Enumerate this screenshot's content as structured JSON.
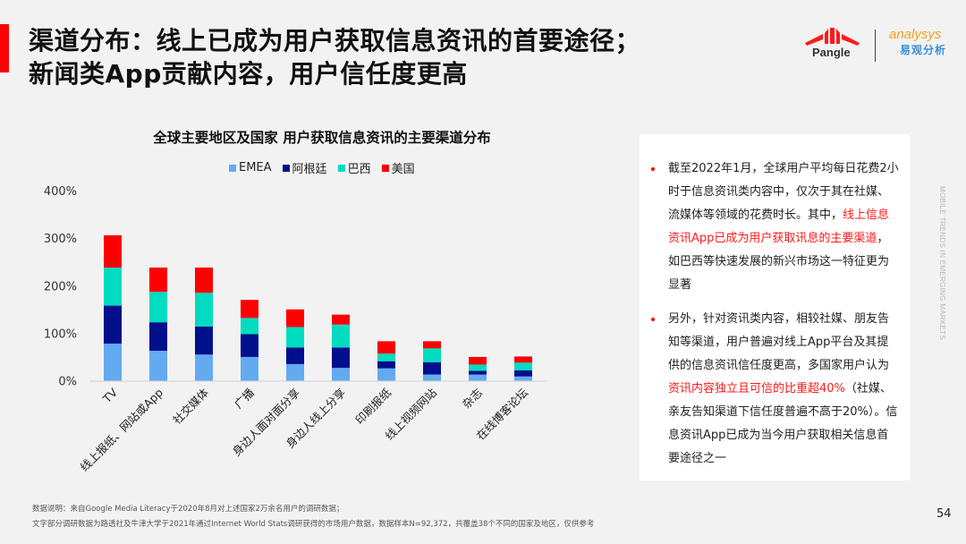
{
  "header": {
    "title_line1": "渠道分布：线上已成为用户获取信息资讯的首要途径；",
    "title_line2": "新闻类App贡献内容，用户信任度更高",
    "logos": {
      "pangle": "Pangle",
      "analysys_en": "analysys",
      "analysys_cn": "易观分析"
    }
  },
  "chart_data": {
    "type": "bar",
    "stacked": true,
    "title": "全球主要地区及国家  用户获取信息资讯的主要渠道分布",
    "xlabel": "",
    "ylabel": "",
    "ylim": [
      0,
      400
    ],
    "yticks": [
      "0%",
      "100%",
      "200%",
      "300%",
      "400%"
    ],
    "ytick_values": [
      0,
      100,
      200,
      300,
      400
    ],
    "grid": false,
    "legend_position": "top-center",
    "categories": [
      "TV",
      "线上报纸、网站或App",
      "社交媒体",
      "广播",
      "身边人面对面分享",
      "身边人线上分享",
      "印刷报纸",
      "线上视频网站",
      "杂志",
      "在线博客论坛"
    ],
    "series": [
      {
        "name": "EMEA",
        "color": "#64aaf0",
        "values": [
          78,
          63,
          55,
          50,
          35,
          27,
          26,
          13,
          13,
          9
        ]
      },
      {
        "name": "阿根廷",
        "color": "#000f8c",
        "values": [
          80,
          60,
          59,
          48,
          35,
          43,
          15,
          26,
          8,
          13
        ]
      },
      {
        "name": "巴西",
        "color": "#00dcc0",
        "values": [
          80,
          64,
          71,
          34,
          43,
          48,
          16,
          29,
          13,
          16
        ]
      },
      {
        "name": "美国",
        "color": "#ff0000",
        "values": [
          68,
          51,
          53,
          38,
          37,
          21,
          26,
          15,
          16,
          13
        ]
      }
    ]
  },
  "notes": {
    "bullet1": {
      "pre": "截至2022年1月，全球用户平均每日花费2小时于信息资讯类内容中，仅次于其在社媒、流媒体等领域的花费时长。其中，",
      "highlight": "线上信息资讯App已成为用户获取讯息的主要渠道",
      "post": "，如巴西等快速发展的新兴市场这一特征更为显著"
    },
    "bullet2": {
      "pre": "另外，针对资讯类内容，相较社媒、朋友告知等渠道，用户普遍对线上App平台及其提供的信息资讯信任度更高，多国家用户认为",
      "highlight": "资讯内容独立且可信的比重超40%",
      "post": "（社媒、亲友告知渠道下信任度普遍不高于20%）。信息资讯App已成为当今用户获取相关信息首要途径之一"
    }
  },
  "side_label": "MOBILE TRENDS IN EMERGING MARKETS",
  "footer": {
    "note_line1": "数据说明：来自Google Media Literacy于2020年8月对上述国家2万余名用户的调研数据；",
    "note_line2": "文字部分调研数据为路透社及牛津大学于2021年通过Internet World Stats调研获得的市场用户数据，数据样本N=92,372，共覆盖38个不同的国家及地区，仅供参考",
    "page_number": "54"
  },
  "colors": {
    "accent": "#ff0000",
    "background": "#f2f2f2"
  }
}
